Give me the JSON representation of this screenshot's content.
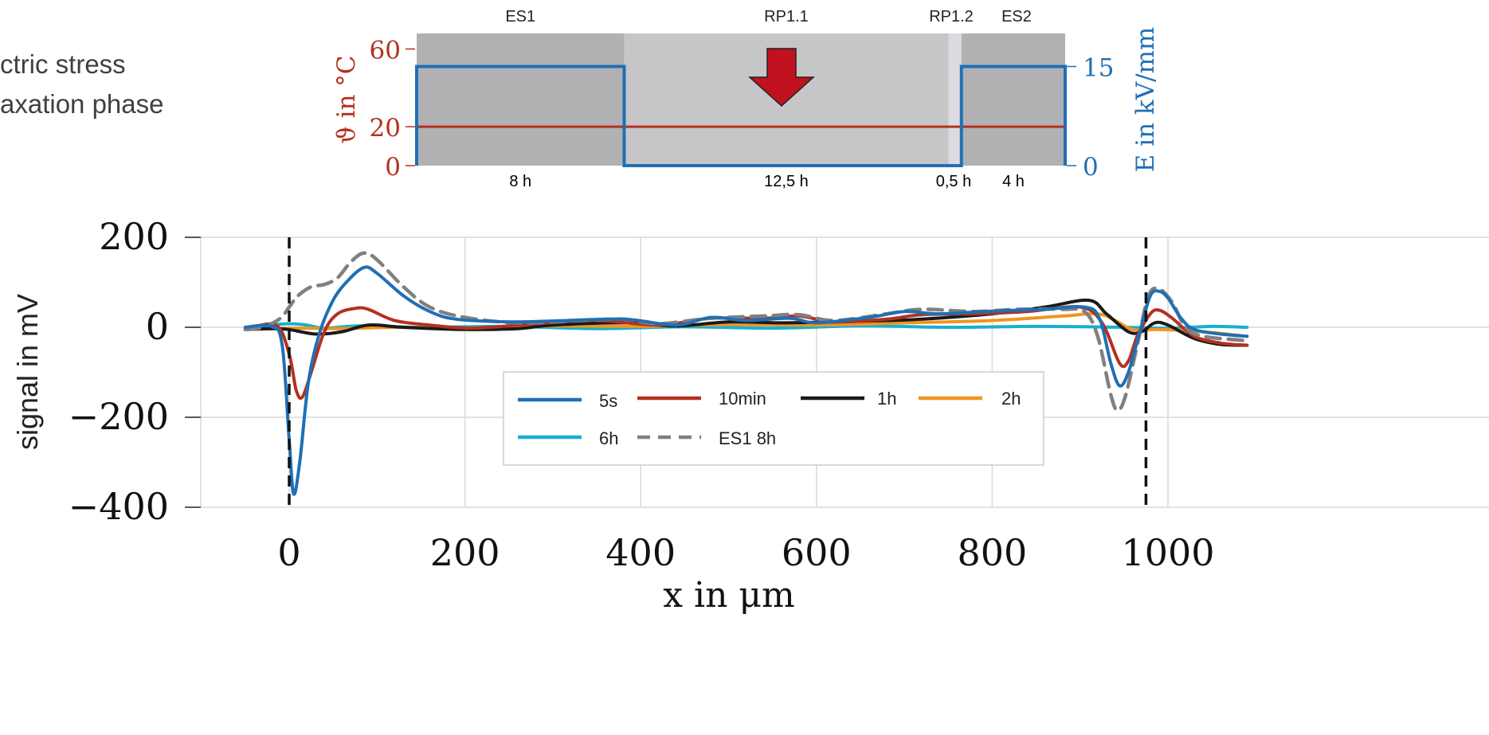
{
  "side_text": {
    "line1": "ctric stress",
    "line2": "axation phase"
  },
  "colors": {
    "temperature": "#b5301f",
    "field": "#1f6fb5",
    "phase_dark": "#b1b1b4",
    "phase_light": "#c6c6c9",
    "phase_lighter": "#dcdce0",
    "arrow": "#c0111f"
  },
  "icons": {
    "phase_arrow": "down-arrow-icon"
  },
  "phase_chart": {
    "type": "step",
    "phases": [
      {
        "name": "ES1",
        "duration_label": "8 h",
        "duration_h": 8,
        "field_kv_mm": 15
      },
      {
        "name": "RP1.1",
        "duration_label": "12,5 h",
        "duration_h": 12.5,
        "field_kv_mm": 0
      },
      {
        "name": "RP1.2",
        "duration_label": "0,5 h",
        "duration_h": 0.5,
        "field_kv_mm": 0
      },
      {
        "name": "ES2",
        "duration_label": "4 h",
        "duration_h": 4,
        "field_kv_mm": 15
      }
    ],
    "temperature_c": 20,
    "left_axis": {
      "label": "ϑ in °C",
      "ticks": [
        "60",
        "20",
        "0"
      ],
      "range": [
        0,
        68
      ]
    },
    "right_axis": {
      "label": "E in kV/mm",
      "ticks": [
        "15",
        "0"
      ],
      "range": [
        0,
        20
      ]
    }
  },
  "chart_data": {
    "type": "line",
    "xlabel": "x in μm",
    "ylabel": "signal in mV",
    "xlim": [
      -50,
      1090
    ],
    "ylim": [
      -400,
      200
    ],
    "xticks": [
      "0",
      "200",
      "400",
      "600",
      "800",
      "1000"
    ],
    "yticks": [
      "200",
      "0",
      "−200",
      "−400"
    ],
    "grid": true,
    "electrode_markers_x": [
      0,
      975
    ],
    "legend": {
      "position": "center",
      "columns": 4
    },
    "series": [
      {
        "name": "5s",
        "color": "#1f6fb5",
        "dash": false,
        "points": [
          [
            -50,
            0
          ],
          [
            -20,
            2
          ],
          [
            -8,
            -40
          ],
          [
            0,
            -250
          ],
          [
            5,
            -370
          ],
          [
            12,
            -300
          ],
          [
            22,
            -120
          ],
          [
            35,
            -10
          ],
          [
            50,
            60
          ],
          [
            65,
            100
          ],
          [
            85,
            133
          ],
          [
            100,
            120
          ],
          [
            130,
            70
          ],
          [
            160,
            35
          ],
          [
            190,
            18
          ],
          [
            250,
            12
          ],
          [
            300,
            14
          ],
          [
            380,
            18
          ],
          [
            440,
            5
          ],
          [
            480,
            22
          ],
          [
            520,
            15
          ],
          [
            570,
            20
          ],
          [
            600,
            10
          ],
          [
            660,
            22
          ],
          [
            700,
            35
          ],
          [
            740,
            30
          ],
          [
            800,
            36
          ],
          [
            860,
            40
          ],
          [
            905,
            45
          ],
          [
            922,
            20
          ],
          [
            935,
            -80
          ],
          [
            945,
            -130
          ],
          [
            955,
            -100
          ],
          [
            968,
            -10
          ],
          [
            980,
            70
          ],
          [
            990,
            80
          ],
          [
            1000,
            65
          ],
          [
            1015,
            20
          ],
          [
            1030,
            -5
          ],
          [
            1060,
            -15
          ],
          [
            1090,
            -20
          ]
        ]
      },
      {
        "name": "10min",
        "color": "#b5301f",
        "dash": false,
        "points": [
          [
            -50,
            -5
          ],
          [
            -15,
            5
          ],
          [
            0,
            -60
          ],
          [
            8,
            -140
          ],
          [
            15,
            -155
          ],
          [
            25,
            -100
          ],
          [
            40,
            -10
          ],
          [
            55,
            30
          ],
          [
            75,
            42
          ],
          [
            90,
            40
          ],
          [
            120,
            15
          ],
          [
            160,
            5
          ],
          [
            210,
            -2
          ],
          [
            280,
            8
          ],
          [
            350,
            15
          ],
          [
            420,
            5
          ],
          [
            480,
            20
          ],
          [
            540,
            20
          ],
          [
            580,
            25
          ],
          [
            620,
            12
          ],
          [
            680,
            18
          ],
          [
            720,
            28
          ],
          [
            780,
            30
          ],
          [
            840,
            35
          ],
          [
            900,
            45
          ],
          [
            925,
            10
          ],
          [
            945,
            -80
          ],
          [
            955,
            -75
          ],
          [
            965,
            -20
          ],
          [
            980,
            30
          ],
          [
            990,
            38
          ],
          [
            1005,
            20
          ],
          [
            1030,
            -20
          ],
          [
            1060,
            -35
          ],
          [
            1090,
            -40
          ]
        ]
      },
      {
        "name": "1h",
        "color": "#1a1a1a",
        "dash": false,
        "points": [
          [
            -50,
            -5
          ],
          [
            -20,
            -3
          ],
          [
            0,
            -5
          ],
          [
            30,
            -15
          ],
          [
            60,
            -10
          ],
          [
            90,
            5
          ],
          [
            130,
            0
          ],
          [
            200,
            -5
          ],
          [
            260,
            -3
          ],
          [
            300,
            5
          ],
          [
            380,
            10
          ],
          [
            440,
            3
          ],
          [
            500,
            12
          ],
          [
            560,
            10
          ],
          [
            620,
            12
          ],
          [
            680,
            15
          ],
          [
            720,
            18
          ],
          [
            800,
            30
          ],
          [
            860,
            45
          ],
          [
            910,
            60
          ],
          [
            930,
            30
          ],
          [
            955,
            -10
          ],
          [
            970,
            -10
          ],
          [
            985,
            10
          ],
          [
            1000,
            5
          ],
          [
            1030,
            -25
          ],
          [
            1060,
            -38
          ],
          [
            1090,
            -40
          ]
        ]
      },
      {
        "name": "2h",
        "color": "#f0951f",
        "dash": false,
        "points": [
          [
            -50,
            -5
          ],
          [
            0,
            -2
          ],
          [
            60,
            -3
          ],
          [
            120,
            0
          ],
          [
            200,
            -2
          ],
          [
            300,
            3
          ],
          [
            400,
            2
          ],
          [
            500,
            6
          ],
          [
            600,
            5
          ],
          [
            700,
            10
          ],
          [
            800,
            15
          ],
          [
            880,
            25
          ],
          [
            920,
            30
          ],
          [
            940,
            15
          ],
          [
            960,
            -5
          ],
          [
            990,
            -5
          ],
          [
            1040,
            -10
          ],
          [
            1090,
            -20
          ]
        ]
      },
      {
        "name": "6h",
        "color": "#17b0d0",
        "dash": false,
        "points": [
          [
            -50,
            -2
          ],
          [
            -20,
            5
          ],
          [
            0,
            8
          ],
          [
            20,
            5
          ],
          [
            40,
            -2
          ],
          [
            80,
            3
          ],
          [
            150,
            0
          ],
          [
            250,
            2
          ],
          [
            350,
            -3
          ],
          [
            450,
            1
          ],
          [
            550,
            -2
          ],
          [
            650,
            3
          ],
          [
            750,
            0
          ],
          [
            850,
            2
          ],
          [
            950,
            0
          ],
          [
            1000,
            -2
          ],
          [
            1050,
            2
          ],
          [
            1090,
            0
          ]
        ]
      },
      {
        "name": "ES1 8h",
        "color": "#808080",
        "dash": true,
        "points": [
          [
            -50,
            -5
          ],
          [
            -30,
            0
          ],
          [
            -10,
            20
          ],
          [
            0,
            45
          ],
          [
            10,
            70
          ],
          [
            25,
            90
          ],
          [
            40,
            95
          ],
          [
            55,
            110
          ],
          [
            70,
            145
          ],
          [
            85,
            165
          ],
          [
            100,
            150
          ],
          [
            130,
            90
          ],
          [
            160,
            45
          ],
          [
            200,
            22
          ],
          [
            260,
            10
          ],
          [
            330,
            15
          ],
          [
            380,
            18
          ],
          [
            420,
            8
          ],
          [
            480,
            20
          ],
          [
            540,
            25
          ],
          [
            580,
            28
          ],
          [
            620,
            15
          ],
          [
            680,
            30
          ],
          [
            720,
            40
          ],
          [
            780,
            35
          ],
          [
            830,
            40
          ],
          [
            880,
            40
          ],
          [
            905,
            35
          ],
          [
            920,
            -20
          ],
          [
            935,
            -150
          ],
          [
            943,
            -185
          ],
          [
            952,
            -150
          ],
          [
            965,
            -40
          ],
          [
            978,
            70
          ],
          [
            990,
            85
          ],
          [
            1005,
            55
          ],
          [
            1020,
            0
          ],
          [
            1040,
            -20
          ],
          [
            1090,
            -30
          ]
        ]
      }
    ]
  }
}
